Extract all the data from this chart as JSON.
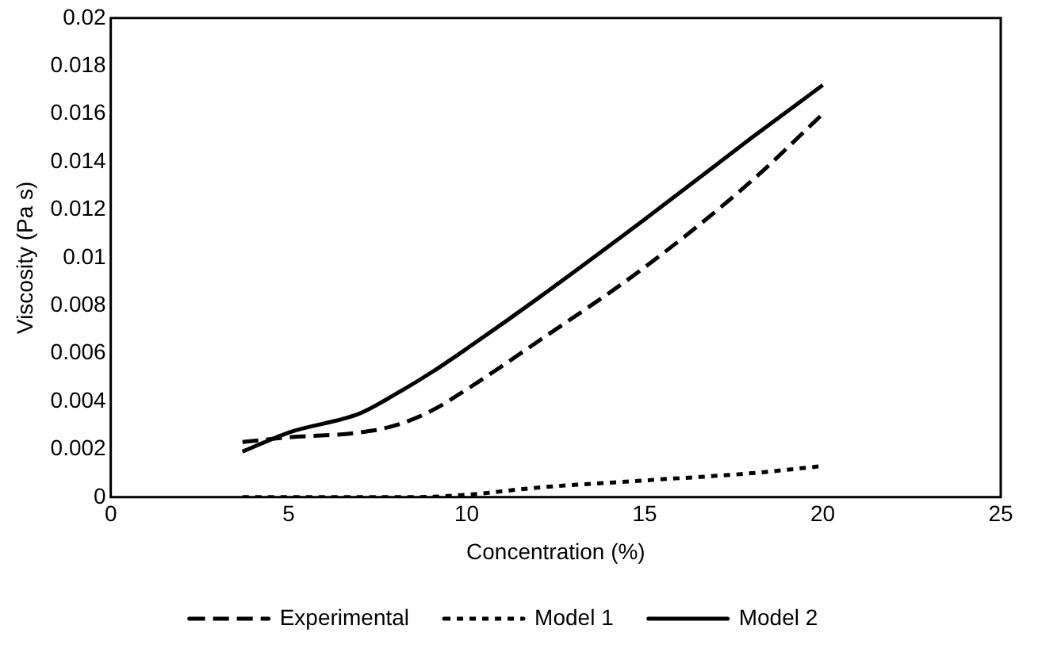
{
  "chart_data": {
    "type": "line",
    "xlabel": "Concentration (%)",
    "ylabel": "Viscosity (Pa s)",
    "xlim": [
      0,
      25
    ],
    "xticks": [
      0,
      5,
      10,
      15,
      20,
      25
    ],
    "ylim": [
      0,
      0.02
    ],
    "yticks": [
      0,
      0.002,
      0.004,
      0.006,
      0.008,
      0.01,
      0.012,
      0.014,
      0.016,
      0.018,
      0.02
    ],
    "grid": false,
    "legend": "bottom",
    "marker": "none",
    "series": [
      {
        "name": "Experimental",
        "color": "#000000",
        "line_style": "dashed",
        "x": [
          3.7,
          5,
          7,
          8,
          9,
          10,
          12,
          15,
          18,
          20
        ],
        "values": [
          0.0023,
          0.0025,
          0.0027,
          0.003,
          0.0036,
          0.0045,
          0.0065,
          0.0096,
          0.0132,
          0.016
        ]
      },
      {
        "name": "Model 1",
        "color": "#000000",
        "line_style": "dotted",
        "x": [
          3.7,
          6,
          8.5,
          10,
          12,
          15,
          18,
          20
        ],
        "values": [
          0,
          0,
          0,
          0.0001,
          0.0004,
          0.0007,
          0.001,
          0.0013
        ]
      },
      {
        "name": "Model 2",
        "color": "#000000",
        "line_style": "solid",
        "x": [
          3.7,
          5,
          7,
          8,
          9,
          10,
          12,
          15,
          18,
          20
        ],
        "values": [
          0.0019,
          0.0027,
          0.0035,
          0.0043,
          0.0052,
          0.0062,
          0.0083,
          0.0116,
          0.015,
          0.0172
        ]
      }
    ]
  }
}
